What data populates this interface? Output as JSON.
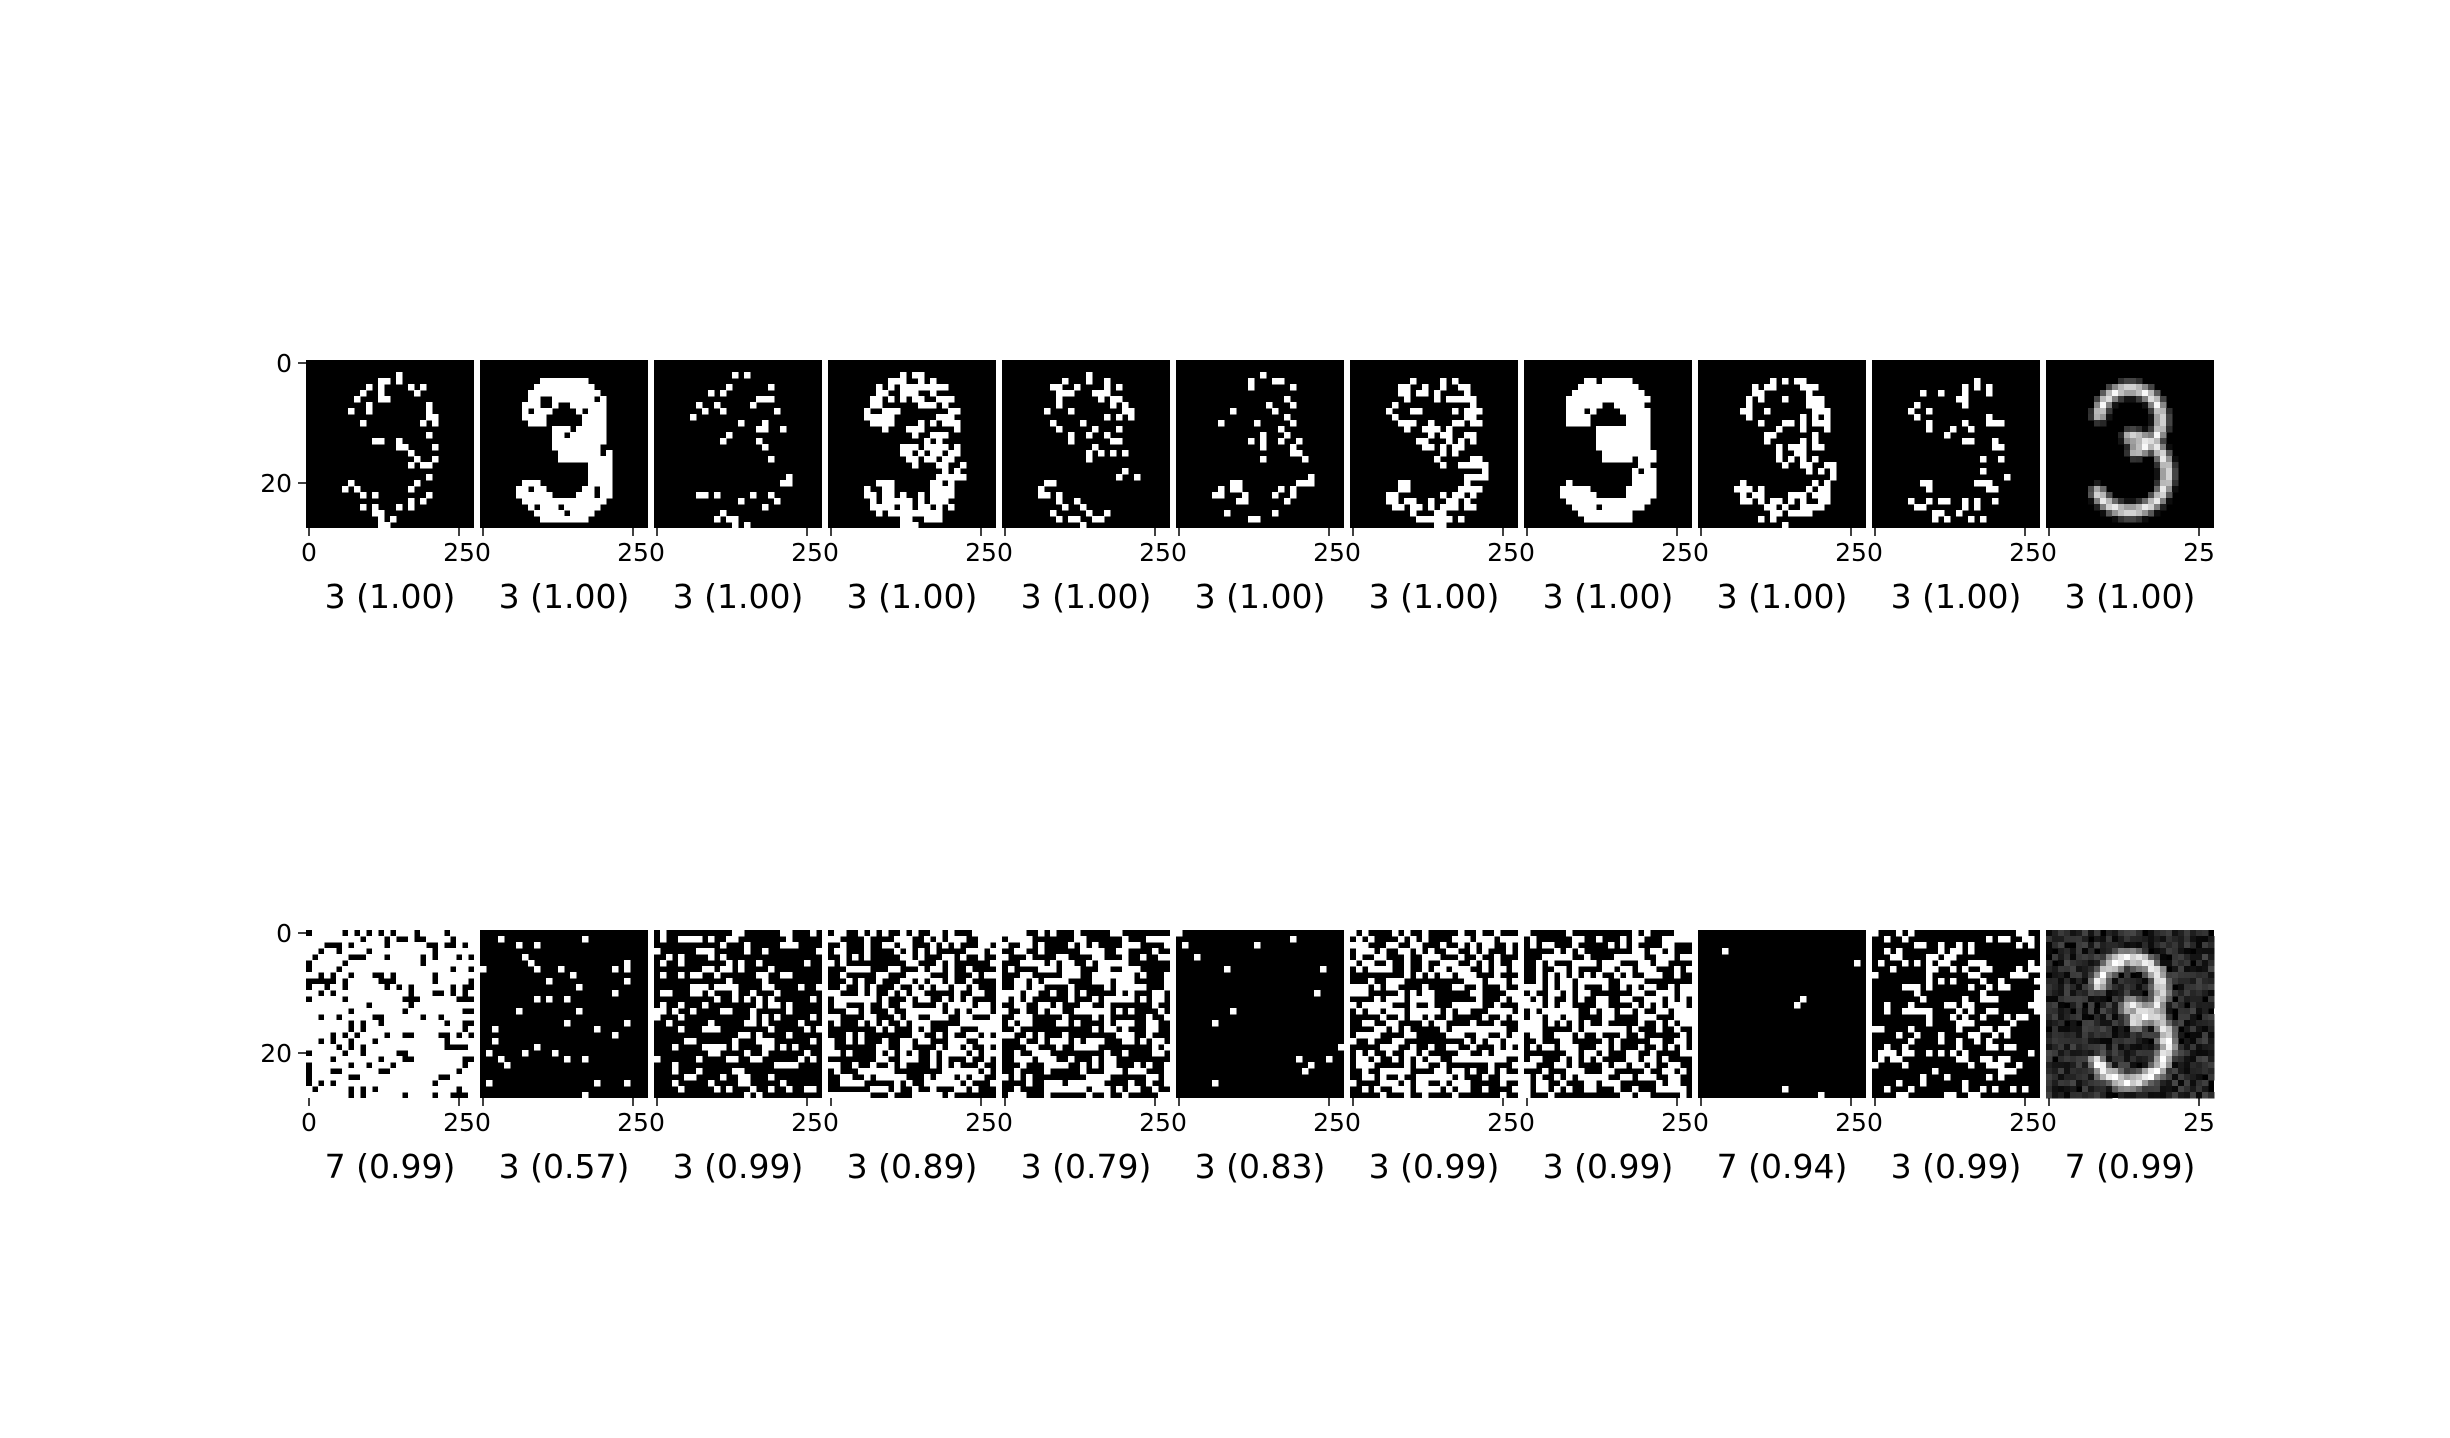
{
  "chart_data": [
    {
      "type": "heatmap",
      "rows": [
        {
          "name": "",
          "panels": [
            {
              "caption": "3 (1.00)",
              "style": "sparse-outline",
              "seed": 11
            },
            {
              "caption": "3 (1.00)",
              "style": "bold-three",
              "seed": 12
            },
            {
              "caption": "3 (1.00)",
              "style": "very-sparse-outline",
              "seed": 13
            },
            {
              "caption": "3 (1.00)",
              "style": "blocky-three",
              "seed": 14
            },
            {
              "caption": "3 (1.00)",
              "style": "sparse-outline",
              "seed": 15
            },
            {
              "caption": "3 (1.00)",
              "style": "sparse-outline",
              "seed": 16
            },
            {
              "caption": "3 (1.00)",
              "style": "dense-outline",
              "seed": 17
            },
            {
              "caption": "3 (1.00)",
              "style": "bold-three",
              "seed": 18
            },
            {
              "caption": "3 (1.00)",
              "style": "dense-outline",
              "seed": 19
            },
            {
              "caption": "3 (1.00)",
              "style": "sparse-outline",
              "seed": 20
            },
            {
              "caption": "3 (1.00)",
              "style": "smooth-three",
              "seed": 21
            }
          ]
        },
        {
          "name": "",
          "panels": [
            {
              "caption": "7 (0.99)",
              "style": "mostly-white-noise",
              "seed": 31
            },
            {
              "caption": "3 (0.57)",
              "style": "sparse-noise",
              "seed": 32
            },
            {
              "caption": "3 (0.99)",
              "style": "medium-noise",
              "seed": 33
            },
            {
              "caption": "3 (0.89)",
              "style": "dense-noise",
              "seed": 34
            },
            {
              "caption": "3 (0.79)",
              "style": "dense-noise",
              "seed": 35
            },
            {
              "caption": "3 (0.83)",
              "style": "very-sparse-noise",
              "seed": 36
            },
            {
              "caption": "3 (0.99)",
              "style": "dense-noise",
              "seed": 37
            },
            {
              "caption": "3 (0.99)",
              "style": "dense-noise",
              "seed": 38
            },
            {
              "caption": "7 (0.94)",
              "style": "nearly-black",
              "seed": 39
            },
            {
              "caption": "3 (0.99)",
              "style": "medium-noise",
              "seed": 40
            },
            {
              "caption": "7 (0.99)",
              "style": "noisy-smooth-three",
              "seed": 41
            }
          ]
        }
      ],
      "image_size": [
        28,
        28
      ],
      "colormap": "gray",
      "y_ticks": [
        "0",
        "20"
      ],
      "x_ticks": [
        "0",
        "25"
      ],
      "x_ticks_last_panel": [
        "0",
        "25"
      ],
      "grid": false,
      "legend": "none"
    }
  ]
}
